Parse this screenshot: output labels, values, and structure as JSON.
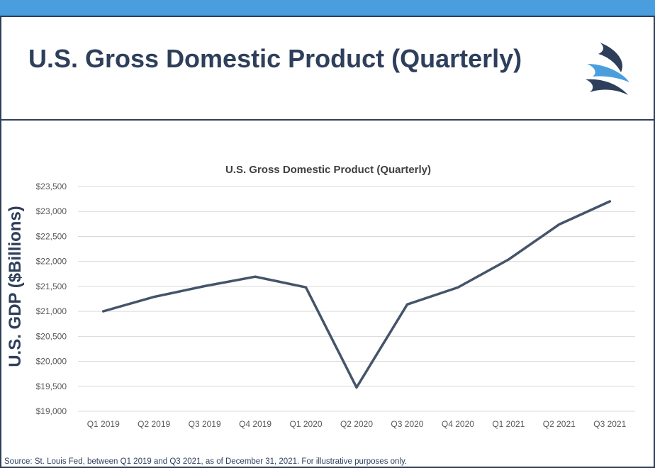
{
  "slide": {
    "title": "U.S. Gross Domestic Product (Quarterly)",
    "y_axis_title": "U.S. GDP ($Billions)",
    "source": "Source: St. Louis Fed, between Q1 2019 and Q3 2021, as of December  31, 2021. For illustrative purposes only.",
    "logo_icon": "wave-logo-icon"
  },
  "colors": {
    "accent": "#4a9ede",
    "navy": "#2e3f5c",
    "line": "#44546a",
    "grid": "#d9d9d9",
    "tick_text": "#595959"
  },
  "chart_data": {
    "type": "line",
    "title": "U.S. Gross Domestic Product (Quarterly)",
    "xlabel": "",
    "ylabel": "",
    "categories": [
      "Q1 2019",
      "Q2 2019",
      "Q3 2019",
      "Q4 2019",
      "Q1 2020",
      "Q2 2020",
      "Q3 2020",
      "Q4 2020",
      "Q1 2021",
      "Q2 2021",
      "Q3 2021"
    ],
    "series": [
      {
        "values": [
          21002,
          21290,
          21506,
          21694,
          21481,
          19477,
          21139,
          21478,
          22038,
          22741,
          23202
        ]
      }
    ],
    "ylim": [
      19000,
      23500
    ],
    "yticks": [
      19000,
      19500,
      20000,
      20500,
      21000,
      21500,
      22000,
      22500,
      23000,
      23500
    ],
    "ytick_labels": [
      "$19,000",
      "$19,500",
      "$20,000",
      "$20,500",
      "$21,000",
      "$21,500",
      "$22,000",
      "$22,500",
      "$23,000",
      "$23,500"
    ],
    "grid": true,
    "legend": "none"
  }
}
